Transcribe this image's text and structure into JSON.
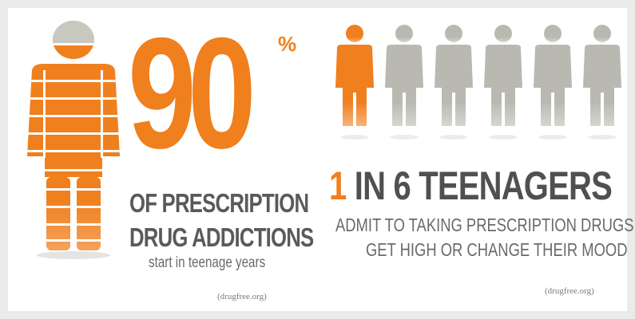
{
  "left_panel": {
    "percent_value": "90",
    "percent_sign": "%",
    "line1": "OF PRESCRIPTION",
    "line2": "DRUG ADDICTIONS",
    "subtext": "start in teenage years",
    "source": "(drugfree.org)",
    "stat_fraction": 0.9
  },
  "right_panel": {
    "headline_number": "1",
    "headline_rest": " IN 6 TEENAGERS",
    "line1": "ADMIT TO TAKING PRESCRIPTION DRUGS TO",
    "line2": "GET HIGH OR CHANGE THEIR MOOD",
    "source": "(drugfree.org)",
    "figures_total": 6,
    "figures_highlighted": 1
  },
  "colors": {
    "accent": "#f07f1e",
    "figure_grey": "#b9b9b1",
    "text_dark": "#505050"
  },
  "icons": {
    "large_figure": "person-striped-icon",
    "small_figure": "person-icon"
  }
}
